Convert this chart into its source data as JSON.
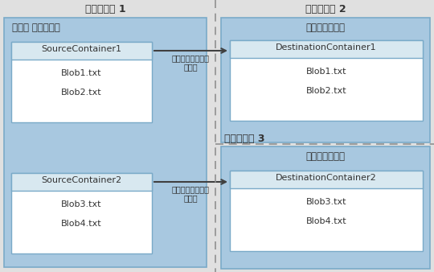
{
  "bg_color": "#e0e0e0",
  "region1_bg": "#a8c8e0",
  "region2_bg": "#a8c8e0",
  "region3_bg": "#a8c8e0",
  "container_bg": "#ffffff",
  "inner_box_bg": "#d8e8f0",
  "region1_label": "リージョン 1",
  "region2_label": "リージョン 2",
  "region3_label": "リージョン 3",
  "source_account_label": "ソース アカウント",
  "dest_account_label": "宛先アカウント",
  "src_container1": "SourceContainer1",
  "src_blobs1": [
    "Blob1.txt",
    "Blob2.txt"
  ],
  "dst_container1": "DestinationContainer1",
  "dst_blobs1": [
    "Blob1.txt",
    "Blob2.txt"
  ],
  "src_container2": "SourceContainer2",
  "src_blobs2": [
    "Blob3.txt",
    "Blob4.txt"
  ],
  "dst_container2": "DestinationContainer2",
  "dst_blobs2": [
    "Blob3.txt",
    "Blob4.txt"
  ],
  "async_label": "非同期レプリケー\nション",
  "arrow_color": "#404040",
  "text_color": "#333333",
  "dashed_line_color": "#909090",
  "border_color": "#7aaac8"
}
